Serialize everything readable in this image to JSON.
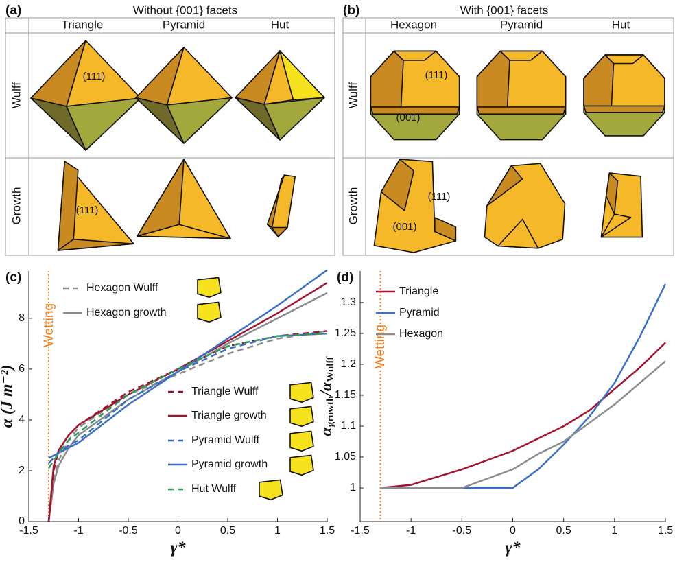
{
  "panel_a": {
    "label": "(a)",
    "title": "Without {001} facets",
    "columns": [
      "Triangle",
      "Pyramid",
      "Hut"
    ],
    "rows": [
      "Wulff",
      "Growth"
    ],
    "facet_labels": [
      "(111)",
      "(111)"
    ]
  },
  "panel_b": {
    "label": "(b)",
    "title": "With {001} facets",
    "columns": [
      "Hexagon",
      "Pyramid",
      "Hut"
    ],
    "rows": [
      "Wulff",
      "Growth"
    ],
    "facet_labels": [
      "(111)",
      "(001)",
      "(111)",
      "(001)"
    ]
  },
  "chart_data": [
    {
      "type": "line",
      "label": "(c)",
      "x_label": "γ*",
      "y_label": "α (J m⁻²)",
      "x": [
        -1.3,
        -1.25,
        -1.2,
        -1.1,
        -1,
        -0.5,
        0,
        0.5,
        1,
        1.5
      ],
      "series": [
        {
          "name": "Hexagon Wulff",
          "color": "#8c8c8c",
          "dashed": true,
          "values": [
            0,
            1.6,
            2.4,
            3.2,
            3.7,
            5.0,
            5.8,
            6.6,
            7.2,
            7.5
          ]
        },
        {
          "name": "Hexagon growth",
          "color": "#8c8c8c",
          "dashed": false,
          "values": [
            0,
            1.5,
            2.2,
            2.9,
            3.4,
            4.8,
            5.9,
            7.0,
            8.0,
            9.0
          ]
        },
        {
          "name": "Triangle Wulff",
          "color": "#a2142f",
          "dashed": true,
          "values": [
            0,
            2.0,
            2.8,
            3.4,
            3.8,
            5.1,
            6.0,
            6.9,
            7.3,
            7.5
          ]
        },
        {
          "name": "Triangle growth",
          "color": "#a2142f",
          "dashed": false,
          "values": [
            0,
            2.2,
            2.8,
            3.4,
            3.8,
            5.0,
            6.0,
            7.1,
            8.2,
            9.4
          ]
        },
        {
          "name": "Pyramid Wulff",
          "color": "#3a6fc4",
          "dashed": true,
          "values": [
            2.3,
            2.5,
            2.7,
            3.0,
            3.2,
            4.8,
            5.9,
            6.8,
            7.3,
            7.4
          ]
        },
        {
          "name": "Pyramid growth",
          "color": "#3a6fc4",
          "dashed": false,
          "values": [
            2.5,
            2.6,
            2.7,
            2.9,
            3.1,
            4.6,
            5.9,
            7.2,
            8.5,
            9.9
          ]
        },
        {
          "name": "Hut Wulff",
          "color": "#2a9d5c",
          "dashed": true,
          "values": [
            2.1,
            2.4,
            2.7,
            3.2,
            3.5,
            5.0,
            6.0,
            6.9,
            7.3,
            7.4
          ]
        }
      ],
      "xlim": [
        -1.5,
        1.5
      ],
      "ylim": [
        0,
        9.86
      ],
      "xticks": [
        -1.5,
        -1,
        -0.5,
        0,
        0.5,
        1,
        1.5
      ],
      "yticks": [
        0,
        2,
        4,
        6,
        8
      ],
      "annotations": [
        {
          "text": "Wetting",
          "x": -1.3,
          "color": "#f07f1e"
        }
      ]
    },
    {
      "type": "line",
      "label": "(d)",
      "x_label": "γ*",
      "y_label": [
        "α",
        "growth",
        "/α",
        "Wulff"
      ],
      "x": [
        -1.3,
        -1,
        -0.5,
        0,
        0.25,
        0.5,
        0.75,
        1,
        1.25,
        1.5
      ],
      "series": [
        {
          "name": "Triangle",
          "color": "#a2142f",
          "dashed": false,
          "values": [
            1,
            1.005,
            1.03,
            1.06,
            1.08,
            1.1,
            1.125,
            1.16,
            1.195,
            1.235
          ]
        },
        {
          "name": "Pyramid",
          "color": "#3a6fc4",
          "dashed": false,
          "values": [
            1,
            1,
            1,
            1,
            1.03,
            1.07,
            1.115,
            1.17,
            1.245,
            1.33
          ]
        },
        {
          "name": "Hexagon",
          "color": "#8c8c8c",
          "dashed": false,
          "values": [
            1,
            1,
            1,
            1.03,
            1.055,
            1.075,
            1.105,
            1.135,
            1.17,
            1.205
          ]
        }
      ],
      "xlim": [
        -1.5,
        1.5
      ],
      "ylim": [
        0.9456,
        1.351
      ],
      "xticks": [
        -1.5,
        -1,
        -0.5,
        0,
        0.5,
        1,
        1.5
      ],
      "yticks": [
        1,
        1.05,
        1.1,
        1.15,
        1.2,
        1.25,
        1.3
      ],
      "annotations": [
        {
          "text": "Wetting",
          "x": -1.3,
          "color": "#f07f1e"
        }
      ]
    }
  ]
}
